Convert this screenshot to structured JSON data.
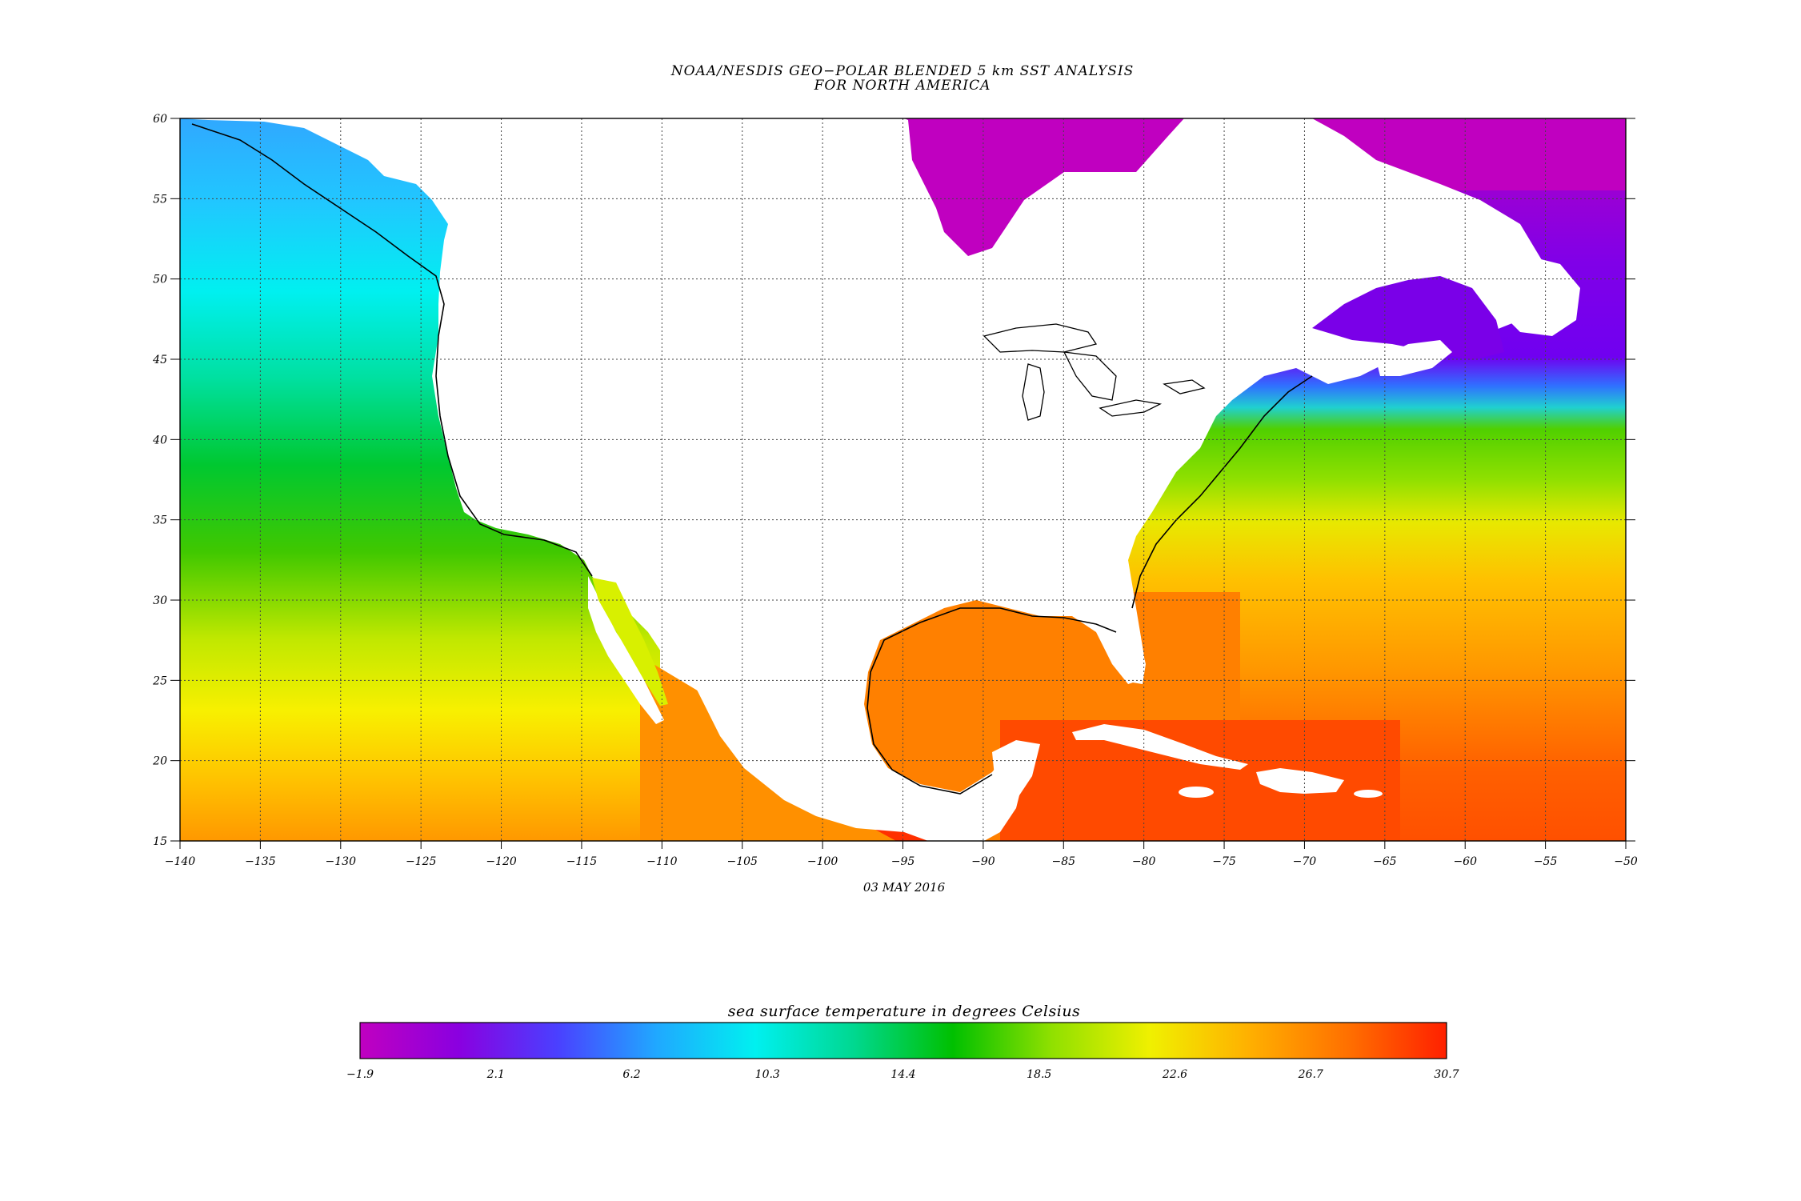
{
  "title": {
    "line1": "NOAA/NESDIS GEO−POLAR BLENDED 5 km SST ANALYSIS",
    "line2": "FOR NORTH AMERICA"
  },
  "date": "03 MAY 2016",
  "map": {
    "lon_range": [
      -140,
      -50
    ],
    "lat_range": [
      15,
      60
    ],
    "lon_ticks": [
      "−140",
      "−135",
      "−130",
      "−125",
      "−120",
      "−115",
      "−110",
      "−105",
      "−100",
      "−95",
      "−90",
      "−85",
      "−80",
      "−75",
      "−70",
      "−65",
      "−60",
      "−55",
      "−50"
    ],
    "lat_ticks": [
      "15",
      "20",
      "25",
      "30",
      "35",
      "40",
      "45",
      "50",
      "55",
      "60"
    ],
    "land_color": "#ffffff",
    "grid": "dotted"
  },
  "colorbar": {
    "title": "sea surface temperature in degrees Celsius",
    "labels": [
      "−1.9",
      "2.1",
      "6.2",
      "10.3",
      "14.4",
      "18.5",
      "22.6",
      "26.7",
      "30.7"
    ],
    "range": [
      -1.9,
      30.7
    ],
    "colors": [
      "#c000c0",
      "#8a00e0",
      "#4a40ff",
      "#20a8ff",
      "#00f0f0",
      "#00d890",
      "#00c000",
      "#90e000",
      "#f0f000",
      "#ffb000",
      "#ff7000",
      "#ff2000"
    ]
  }
}
